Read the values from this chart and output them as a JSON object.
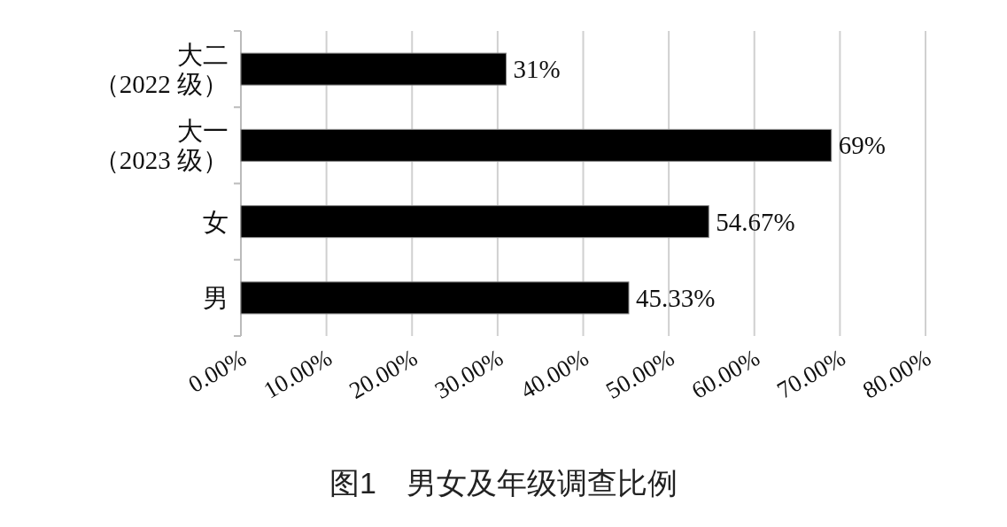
{
  "chart_data": {
    "type": "bar",
    "orientation": "horizontal",
    "title": "图1　男女及年级调查比例",
    "categories": [
      "大二（2022 级）",
      "大一（2023 级）",
      "女",
      "男"
    ],
    "values": [
      31,
      69,
      54.67,
      45.33
    ],
    "value_labels": [
      "31%",
      "69%",
      "54.67%",
      "45.33%"
    ],
    "color": "#000000",
    "xlim": [
      0,
      80
    ],
    "xticks": [
      {
        "value": 0,
        "label": "0.00%"
      },
      {
        "value": 10,
        "label": "10.00%"
      },
      {
        "value": 20,
        "label": "20.00%"
      },
      {
        "value": 30,
        "label": "30.00%"
      },
      {
        "value": 40,
        "label": "40.00%"
      },
      {
        "value": 50,
        "label": "50.00%"
      },
      {
        "value": 60,
        "label": "60.00%"
      },
      {
        "value": 70,
        "label": "70.00%"
      },
      {
        "value": 80,
        "label": "80.00%"
      }
    ],
    "grid": "x"
  }
}
